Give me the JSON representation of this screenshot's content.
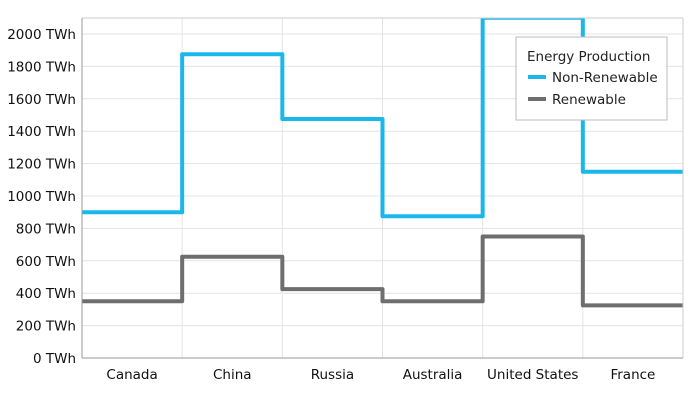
{
  "chart_data": {
    "type": "line",
    "subtype": "step",
    "categories": [
      "Canada",
      "China",
      "Russia",
      "Australia",
      "United States",
      "France"
    ],
    "series": [
      {
        "name": "Non-Renewable",
        "color": "#1ab7ea",
        "values": [
          900,
          1875,
          1475,
          875,
          2100,
          1150
        ]
      },
      {
        "name": "Renewable",
        "color": "#6e6e6e",
        "values": [
          350,
          625,
          425,
          350,
          750,
          325
        ]
      }
    ],
    "y_ticks": [
      0,
      200,
      400,
      600,
      800,
      1000,
      1200,
      1400,
      1600,
      1800,
      2000
    ],
    "y_unit": "TWh",
    "ylim": [
      0,
      2000
    ],
    "grid": true,
    "legend": {
      "title": "Energy Production",
      "placement": "top-right"
    },
    "title": "",
    "xlabel": "",
    "ylabel": ""
  }
}
